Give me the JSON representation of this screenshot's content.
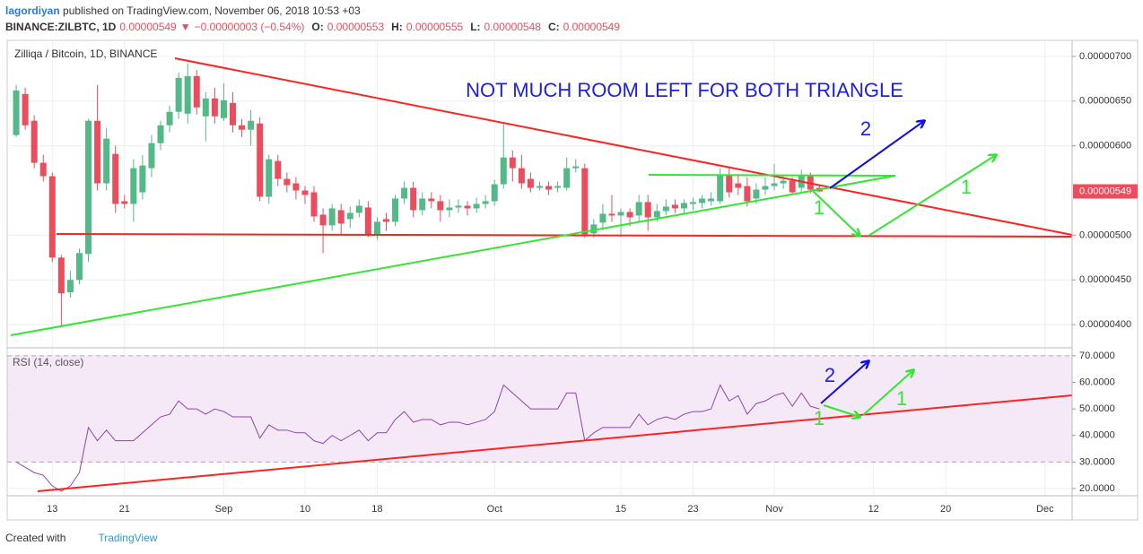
{
  "header": {
    "author": "lagordiyan",
    "published": "published on TradingView.com, November 06, 2018 10:53 +03",
    "quote": [
      "BINANCE:ZILBTC, 1D",
      "0.00000549",
      "▼",
      "−0.00000003 (−0.54%)",
      "O:",
      "0.00000553",
      "H:",
      "0.00000555",
      "L:",
      "0.00000548",
      "C:",
      "0.00000549"
    ]
  },
  "footer": {
    "created": "Created with",
    "brand": "TradingView"
  },
  "chart_data": [
    {
      "type": "candlestick",
      "legend": "Zilliqa / Bitcoin, 1D, BINANCE",
      "price_label": "0.00000549",
      "up_color": "#53b987",
      "down_color": "#eb4d5c",
      "annotations": [
        "NOT MUCH ROOM LEFT FOR BOTH TRIANGLE",
        "2",
        "1",
        "1"
      ],
      "x": [
        "2018-08-09",
        "2018-08-10",
        "2018-08-11",
        "2018-08-12",
        "2018-08-13",
        "2018-08-14",
        "2018-08-15",
        "2018-08-16",
        "2018-08-17",
        "2018-08-18",
        "2018-08-19",
        "2018-08-20",
        "2018-08-21",
        "2018-08-22",
        "2018-08-23",
        "2018-08-24",
        "2018-08-25",
        "2018-08-26",
        "2018-08-27",
        "2018-08-28",
        "2018-08-29",
        "2018-08-30",
        "2018-08-31",
        "2018-09-01",
        "2018-09-02",
        "2018-09-03",
        "2018-09-04",
        "2018-09-05",
        "2018-09-06",
        "2018-09-07",
        "2018-09-08",
        "2018-09-09",
        "2018-09-10",
        "2018-09-11",
        "2018-09-12",
        "2018-09-13",
        "2018-09-14",
        "2018-09-15",
        "2018-09-16",
        "2018-09-17",
        "2018-09-18",
        "2018-09-19",
        "2018-09-20",
        "2018-09-21",
        "2018-09-22",
        "2018-09-23",
        "2018-09-24",
        "2018-09-25",
        "2018-09-26",
        "2018-09-27",
        "2018-09-28",
        "2018-09-29",
        "2018-09-30",
        "2018-10-01",
        "2018-10-02",
        "2018-10-03",
        "2018-10-04",
        "2018-10-05",
        "2018-10-06",
        "2018-10-07",
        "2018-10-08",
        "2018-10-09",
        "2018-10-10",
        "2018-10-11",
        "2018-10-12",
        "2018-10-13",
        "2018-10-14",
        "2018-10-15",
        "2018-10-16",
        "2018-10-17",
        "2018-10-18",
        "2018-10-19",
        "2018-10-20",
        "2018-10-21",
        "2018-10-22",
        "2018-10-23",
        "2018-10-24",
        "2018-10-25",
        "2018-10-26",
        "2018-10-27",
        "2018-10-28",
        "2018-10-29",
        "2018-10-30",
        "2018-10-31",
        "2018-11-01",
        "2018-11-02",
        "2018-11-03",
        "2018-11-04",
        "2018-11-05",
        "2018-11-06"
      ],
      "open": [
        6.12e-06,
        6.58e-06,
        6.28e-06,
        5.81e-06,
        5.66e-06,
        4.75e-06,
        4.36e-06,
        4.5e-06,
        4.79e-06,
        6.28e-06,
        5.58e-06,
        5.91e-06,
        5.38e-06,
        5.35e-06,
        5.48e-06,
        5.75e-06,
        6.03e-06,
        6.23e-06,
        6.38e-06,
        6.36e-06,
        6.78e-06,
        6.33e-06,
        6.53e-06,
        6.31e-06,
        6.48e-06,
        6.23e-06,
        6.18e-06,
        6.25e-06,
        5.43e-06,
        5.83e-06,
        5.63e-06,
        5.58e-06,
        5.5e-06,
        5.48e-06,
        5.23e-06,
        5.11e-06,
        5.28e-06,
        5.18e-06,
        5.25e-06,
        5.31e-06,
        5.01e-06,
        5.18e-06,
        5.15e-06,
        5.41e-06,
        5.53e-06,
        5.28e-06,
        5.41e-06,
        5.38e-06,
        5.28e-06,
        5.31e-06,
        5.33e-06,
        5.3e-06,
        5.35e-06,
        5.38e-06,
        5.57e-06,
        5.87e-06,
        5.75e-06,
        5.63e-06,
        5.53e-06,
        5.55e-06,
        5.53e-06,
        5.53e-06,
        5.75e-06,
        5.75e-06,
        5.02e-06,
        5.14e-06,
        5.24e-06,
        5.22e-06,
        5.26e-06,
        5.22e-06,
        5.37e-06,
        5.2e-06,
        5.27e-06,
        5.34e-06,
        5.3e-06,
        5.35e-06,
        5.36e-06,
        5.38e-06,
        5.38e-06,
        5.68e-06,
        5.58e-06,
        5.55e-06,
        5.41e-06,
        5.51e-06,
        5.55e-06,
        5.58e-06,
        5.61e-06,
        5.53e-06,
        5.66e-06,
        5.53e-06
      ],
      "high": [
        6.68e-06,
        6.65e-06,
        6.34e-06,
        5.9e-06,
        5.7e-06,
        4.78e-06,
        4.6e-06,
        4.85e-06,
        6.3e-06,
        6.68e-06,
        6.2e-06,
        6e-06,
        5.45e-06,
        5.85e-06,
        5.9e-06,
        6.12e-06,
        6.28e-06,
        6.45e-06,
        6.82e-06,
        6.92e-06,
        6.85e-06,
        6.6e-06,
        6.65e-06,
        6.7e-06,
        6.6e-06,
        6.3e-06,
        6.4e-06,
        6.32e-06,
        5.9e-06,
        5.9e-06,
        5.7e-06,
        5.65e-06,
        5.55e-06,
        5.55e-06,
        5.3e-06,
        5.35e-06,
        5.35e-06,
        5.32e-06,
        5.4e-06,
        5.38e-06,
        5.2e-06,
        5.25e-06,
        5.45e-06,
        5.6e-06,
        5.6e-06,
        5.48e-06,
        5.48e-06,
        5.45e-06,
        5.4e-06,
        5.4e-06,
        5.38e-06,
        5.42e-06,
        5.45e-06,
        5.62e-06,
        6.25e-06,
        5.95e-06,
        5.9e-06,
        5.7e-06,
        5.6e-06,
        5.6e-06,
        5.6e-06,
        5.87e-06,
        5.85e-06,
        5.8e-06,
        5.18e-06,
        5.35e-06,
        5.45e-06,
        5.3e-06,
        5.3e-06,
        5.45e-06,
        5.45e-06,
        5.35e-06,
        5.4e-06,
        5.4e-06,
        5.4e-06,
        5.42e-06,
        5.45e-06,
        5.48e-06,
        5.75e-06,
        5.75e-06,
        5.68e-06,
        5.65e-06,
        5.58e-06,
        5.65e-06,
        5.8e-06,
        5.68e-06,
        5.65e-06,
        5.73e-06,
        5.7e-06,
        5.55e-06
      ],
      "low": [
        6.1e-06,
        6.18e-06,
        5.75e-06,
        5.6e-06,
        4.7e-06,
        3.97e-06,
        4.3e-06,
        4.45e-06,
        4.7e-06,
        5.5e-06,
        5.5e-06,
        5.25e-06,
        5.3e-06,
        5.15e-06,
        5.4e-06,
        5.65e-06,
        5.95e-06,
        6.15e-06,
        6.3e-06,
        6.25e-06,
        6.35e-06,
        6.05e-06,
        6.25e-06,
        6.28e-06,
        6.15e-06,
        6.1e-06,
        6e-06,
        5.38e-06,
        5.35e-06,
        5.55e-06,
        5.48e-06,
        5.4e-06,
        5.35e-06,
        5.15e-06,
        4.8e-06,
        5.05e-06,
        5e-06,
        5.08e-06,
        5.2e-06,
        4.98e-06,
        4.95e-06,
        5.05e-06,
        5.1e-06,
        5.35e-06,
        5.2e-06,
        5.22e-06,
        5.3e-06,
        5.15e-06,
        5.2e-06,
        5.25e-06,
        5.22e-06,
        5.25e-06,
        5.3e-06,
        5.33e-06,
        5.52e-06,
        5.6e-06,
        5.52e-06,
        5.48e-06,
        5.5e-06,
        5.45e-06,
        5.48e-06,
        5.5e-06,
        5.7e-06,
        4.97e-06,
        4.97e-06,
        5.05e-06,
        5.15e-06,
        4.98e-06,
        5.1e-06,
        5.15e-06,
        5.05e-06,
        5.15e-06,
        5.22e-06,
        5.25e-06,
        5.25e-06,
        5.28e-06,
        5.3e-06,
        5.33e-06,
        5.35e-06,
        5.42e-06,
        5.45e-06,
        5.32e-06,
        5.35e-06,
        5.45e-06,
        5.5e-06,
        5.52e-06,
        5.45e-06,
        5.48e-06,
        5.47e-06,
        5.48e-06
      ],
      "close": [
        6.62e-06,
        6.23e-06,
        5.81e-06,
        5.66e-06,
        4.75e-06,
        4.35e-06,
        4.5e-06,
        4.8e-06,
        6.28e-06,
        5.58e-06,
        6.08e-06,
        5.35e-06,
        5.35e-06,
        5.75e-06,
        5.78e-06,
        6.03e-06,
        6.23e-06,
        6.38e-06,
        6.76e-06,
        6.78e-06,
        6.43e-06,
        6.53e-06,
        6.33e-06,
        6.51e-06,
        6.23e-06,
        6.18e-06,
        6.28e-06,
        5.43e-06,
        5.85e-06,
        5.63e-06,
        5.56e-06,
        5.5e-06,
        5.45e-06,
        5.21e-06,
        5.11e-06,
        5.3e-06,
        5.13e-06,
        5.25e-06,
        5.33e-06,
        5.01e-06,
        5.15e-06,
        5.15e-06,
        5.41e-06,
        5.53e-06,
        5.28e-06,
        5.41e-06,
        5.38e-06,
        5.28e-06,
        5.31e-06,
        5.33e-06,
        5.3e-06,
        5.35e-06,
        5.38e-06,
        5.57e-06,
        5.87e-06,
        5.75e-06,
        5.58e-06,
        5.53e-06,
        5.55e-06,
        5.51e-06,
        5.55e-06,
        5.75e-06,
        5.77e-06,
        5.01e-06,
        5.12e-06,
        5.24e-06,
        5.22e-06,
        5.26e-06,
        5.2e-06,
        5.37e-06,
        5.2e-06,
        5.27e-06,
        5.32e-06,
        5.3e-06,
        5.36e-06,
        5.37e-06,
        5.41e-06,
        5.41e-06,
        5.68e-06,
        5.48e-06,
        5.53e-06,
        5.38e-06,
        5.51e-06,
        5.55e-06,
        5.58e-06,
        5.61e-06,
        5.48e-06,
        5.66e-06,
        5.51e-06,
        5.49e-06
      ],
      "xlim": [
        "2018-08-08",
        "2018-12-04"
      ],
      "xticks": [
        {
          "value": "2018-08-13",
          "label": "13"
        },
        {
          "value": "2018-08-21",
          "label": "21"
        },
        {
          "value": "2018-09-01",
          "label": "Sep"
        },
        {
          "value": "2018-09-10",
          "label": "10"
        },
        {
          "value": "2018-09-18",
          "label": "18"
        },
        {
          "value": "2018-10-01",
          "label": "Oct"
        },
        {
          "value": "2018-10-15",
          "label": "15"
        },
        {
          "value": "2018-10-23",
          "label": "23"
        },
        {
          "value": "2018-11-01",
          "label": "Nov"
        },
        {
          "value": "2018-11-12",
          "label": "12"
        },
        {
          "value": "2018-11-20",
          "label": "20"
        },
        {
          "value": "2018-12-01",
          "label": "Dec"
        }
      ],
      "ylim": [
        3.74e-06,
        7.18e-06
      ],
      "yticks": [
        {
          "value": 4e-06,
          "label": "0.00000400"
        },
        {
          "value": 4.5e-06,
          "label": "0.00000450"
        },
        {
          "value": 5e-06,
          "label": "0.00000500"
        },
        {
          "value": 6e-06,
          "label": "0.00000600"
        },
        {
          "value": 6.5e-06,
          "label": "0.00000650"
        },
        {
          "value": 7e-06,
          "label": "0.00000700"
        }
      ],
      "grid": true
    },
    {
      "type": "line",
      "legend": "RSI (14, close)",
      "color": "#8e44ad",
      "band_color": "#9c27b0",
      "annotations": [
        "2",
        "1",
        "1"
      ],
      "values": [
        30,
        28,
        26,
        25,
        21,
        19,
        21,
        26,
        43,
        38,
        42,
        38,
        38,
        38,
        41,
        44,
        47,
        48,
        53,
        50,
        50,
        48,
        50,
        49,
        47,
        47,
        47,
        39,
        44,
        42,
        42,
        41,
        41,
        38,
        37,
        40,
        38,
        40,
        42,
        38,
        41,
        41,
        46,
        49,
        45,
        46,
        46,
        44,
        45,
        45,
        44,
        45,
        46,
        49,
        59,
        56,
        53,
        50,
        50,
        50,
        50,
        56,
        56,
        38,
        41,
        43,
        43,
        43,
        43,
        48,
        44,
        46,
        47,
        46,
        48,
        49,
        49,
        50,
        59,
        53,
        55,
        48,
        52,
        53,
        55,
        56,
        51,
        56,
        51,
        50
      ],
      "bands": [
        30,
        70
      ],
      "ylim": [
        17.3,
        73
      ],
      "yticks": [
        {
          "value": 20,
          "label": "20.0000"
        },
        {
          "value": 30,
          "label": "30.0000"
        },
        {
          "value": 40,
          "label": "40.0000"
        },
        {
          "value": 50,
          "label": "50.0000"
        },
        {
          "value": 60,
          "label": "60.0000"
        },
        {
          "value": 70,
          "label": "70.0000"
        }
      ],
      "grid": true
    }
  ]
}
